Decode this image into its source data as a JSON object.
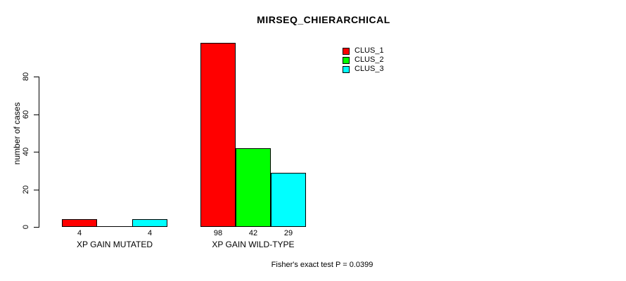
{
  "title": "MIRSEQ_CHIERARCHICAL",
  "footer": "Fisher's exact test P = 0.0399",
  "y_axis": {
    "label": "number of cases"
  },
  "legend": {
    "items": [
      {
        "label": "CLUS_1",
        "color": "#ff0000"
      },
      {
        "label": "CLUS_2",
        "color": "#00ff00"
      },
      {
        "label": "CLUS_3",
        "color": "#00ffff"
      }
    ]
  },
  "chart_data": {
    "type": "bar",
    "title": "MIRSEQ_CHIERARCHICAL",
    "xlabel": "",
    "ylabel": "number of cases",
    "categories": [
      "XP GAIN MUTATED",
      "XP GAIN WILD-TYPE"
    ],
    "series": [
      {
        "name": "CLUS_1",
        "color": "#ff0000",
        "values": [
          4,
          98
        ]
      },
      {
        "name": "CLUS_2",
        "color": "#00ff00",
        "values": [
          0,
          42
        ]
      },
      {
        "name": "CLUS_3",
        "color": "#00ffff",
        "values": [
          4,
          29
        ]
      }
    ],
    "value_labels": [
      [
        "4",
        "",
        "4"
      ],
      [
        "98",
        "42",
        "29"
      ]
    ],
    "yticks": [
      0,
      20,
      40,
      60,
      80
    ],
    "ylim": [
      0,
      80
    ],
    "grid": false,
    "legend_position": "top-right",
    "legend_entries": [
      "CLUS_1",
      "CLUS_2",
      "CLUS_3"
    ],
    "annotation": "Fisher's exact test P = 0.0399"
  }
}
